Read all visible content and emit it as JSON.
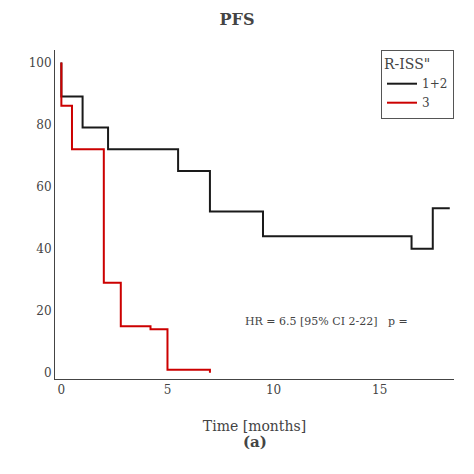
{
  "chart_data": {
    "type": "line",
    "title": "PFS",
    "subtitle": "(a)",
    "xlabel": "Time [months]",
    "annotation": "HR = 6.5 [95% CI 2-22]   p =",
    "legend_title": "R-ISS\"",
    "legend": "upper right",
    "grid": false,
    "xlim": [
      -0.3,
      18.5
    ],
    "ylim": [
      -2,
      104
    ],
    "xticks": [
      0,
      5,
      10,
      15
    ],
    "yticks": [
      0,
      20,
      40,
      60,
      80,
      100
    ],
    "series": [
      {
        "name": "1+2",
        "color": "#1a1a1a",
        "line_style": "steps-post",
        "x": [
          0,
          0,
          1.0,
          1.0,
          2.2,
          2.2,
          3.2,
          3.2,
          5.5,
          5.5,
          7.0,
          7.0,
          8.2,
          8.2,
          9.5,
          9.5,
          10.8,
          10.8,
          16.5,
          16.5,
          17.5,
          17.5,
          18.3
        ],
        "values": [
          100,
          89,
          89,
          79,
          79,
          72,
          72,
          72,
          72,
          65,
          65,
          52,
          52,
          52,
          52,
          44,
          44,
          44,
          44,
          40,
          40,
          53,
          53
        ]
      },
      {
        "name": "3",
        "color": "#cc0000",
        "line_style": "steps-post",
        "x": [
          0,
          0,
          0.5,
          0.5,
          2.0,
          2.0,
          2.8,
          2.8,
          3.5,
          3.5,
          4.2,
          4.2,
          5.0,
          5.0,
          7.0,
          7.0
        ],
        "values": [
          100,
          86,
          86,
          72,
          72,
          29,
          29,
          15,
          15,
          15,
          15,
          14,
          14,
          1,
          1,
          0
        ]
      }
    ]
  }
}
